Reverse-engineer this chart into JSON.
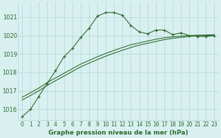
{
  "title": "Graphe pression niveau de la mer (hPa)",
  "background_color": "#d8f0f0",
  "grid_color": "#b8d8d8",
  "line_color": "#2d6a2d",
  "xlim": [
    -0.5,
    23.5
  ],
  "ylim": [
    1015.4,
    1021.8
  ],
  "yticks": [
    1016,
    1017,
    1018,
    1019,
    1020,
    1021
  ],
  "xticks": [
    0,
    1,
    2,
    3,
    4,
    5,
    6,
    7,
    8,
    9,
    10,
    11,
    12,
    13,
    14,
    15,
    16,
    17,
    18,
    19,
    20,
    21,
    22,
    23
  ],
  "main_x": [
    0,
    1,
    2,
    3,
    4,
    5,
    6,
    7,
    8,
    9,
    10,
    11,
    12,
    13,
    14,
    15,
    16,
    17,
    18,
    19,
    20,
    21,
    22,
    23
  ],
  "main_y": [
    1015.6,
    1016.0,
    1016.7,
    1017.4,
    1018.1,
    1018.85,
    1019.3,
    1019.9,
    1020.4,
    1021.05,
    1021.25,
    1021.25,
    1021.1,
    1020.55,
    1020.2,
    1020.1,
    1020.3,
    1020.3,
    1020.05,
    1020.15,
    1020.0,
    1019.95,
    1019.95,
    1020.0
  ],
  "line2_x": [
    0,
    1,
    2,
    3,
    4,
    5,
    6,
    7,
    8,
    9,
    10,
    11,
    12,
    13,
    14,
    15,
    16,
    17,
    18,
    19,
    20,
    21,
    22,
    23
  ],
  "line2_y": [
    1016.5,
    1016.75,
    1017.0,
    1017.3,
    1017.55,
    1017.8,
    1018.05,
    1018.3,
    1018.5,
    1018.7,
    1018.88,
    1019.05,
    1019.2,
    1019.35,
    1019.48,
    1019.58,
    1019.68,
    1019.78,
    1019.85,
    1019.9,
    1019.95,
    1020.0,
    1020.0,
    1020.0
  ],
  "line3_x": [
    0,
    1,
    2,
    3,
    4,
    5,
    6,
    7,
    8,
    9,
    10,
    11,
    12,
    13,
    14,
    15,
    16,
    17,
    18,
    19,
    20,
    21,
    22,
    23
  ],
  "line3_y": [
    1016.65,
    1016.9,
    1017.15,
    1017.45,
    1017.7,
    1017.95,
    1018.2,
    1018.45,
    1018.65,
    1018.85,
    1019.03,
    1019.2,
    1019.35,
    1019.5,
    1019.6,
    1019.7,
    1019.8,
    1019.88,
    1019.93,
    1019.97,
    1020.0,
    1020.02,
    1020.03,
    1020.05
  ]
}
